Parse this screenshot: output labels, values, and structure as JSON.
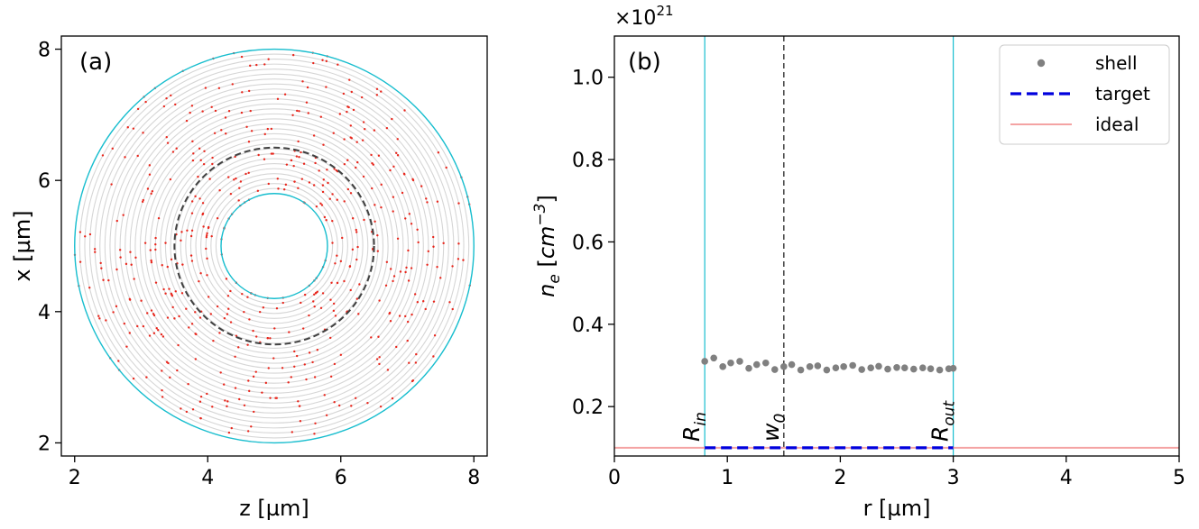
{
  "figure": {
    "panels": [
      "(a)",
      "(b)"
    ]
  },
  "chart_data": [
    {
      "type": "scatter",
      "panel_label": "(a)",
      "xlabel": "z [µm]",
      "ylabel": "x [µm]",
      "xlim": [
        1.8,
        8.2
      ],
      "ylim": [
        1.8,
        8.2
      ],
      "xticks": [
        2,
        4,
        6,
        8
      ],
      "yticks": [
        2,
        4,
        6,
        8
      ],
      "xtick_labels": [
        "2",
        "4",
        "6",
        "8"
      ],
      "ytick_labels": [
        "2",
        "4",
        "6",
        "8"
      ],
      "center": [
        5,
        5
      ],
      "shells": {
        "inner_radius": 0.8,
        "outer_radius": 3.0,
        "count": 30,
        "color": "#d6d6d6"
      },
      "boundary_radii": [
        0.8,
        3.0
      ],
      "boundary_color": "#17becf",
      "waist_radius": 1.5,
      "waist_color": "#404040",
      "particle_color": "#e8261c",
      "particle_count": 560
    },
    {
      "type": "line",
      "panel_label": "(b)",
      "xlabel": "r [µm]",
      "ylabel": "n_e [cm^-3]",
      "ylabel_parts": {
        "symbol": "n",
        "sub": "e",
        "unit": "cm",
        "exp": "−3"
      },
      "offset_text": {
        "base": "×10",
        "exp": "21"
      },
      "xlim": [
        0,
        5
      ],
      "ylim": [
        0.08,
        1.1
      ],
      "xticks": [
        0,
        1,
        2,
        3,
        4,
        5
      ],
      "xtick_labels": [
        "0",
        "1",
        "2",
        "3",
        "4",
        "5"
      ],
      "yticks": [
        0.2,
        0.4,
        0.6,
        0.8,
        1.0
      ],
      "ytick_labels": [
        "0.2",
        "0.4",
        "0.6",
        "0.8",
        "1.0"
      ],
      "vlines": [
        {
          "name": "R_in",
          "x": 0.8,
          "color": "#17becf",
          "style": "solid",
          "label": {
            "main": "R",
            "sub": "in"
          }
        },
        {
          "name": "w_0",
          "x": 1.5,
          "color": "#404040",
          "style": "dashed",
          "label": {
            "main": "w",
            "sub": "0"
          }
        },
        {
          "name": "R_out",
          "x": 3.0,
          "color": "#17becf",
          "style": "solid",
          "label": {
            "main": "R",
            "sub": "out"
          }
        }
      ],
      "series": [
        {
          "name": "shell",
          "kind": "scatter",
          "color": "#808080",
          "x": [
            0.8,
            0.88,
            0.96,
            1.03,
            1.11,
            1.19,
            1.26,
            1.34,
            1.42,
            1.5,
            1.57,
            1.65,
            1.73,
            1.8,
            1.88,
            1.96,
            2.03,
            2.11,
            2.19,
            2.27,
            2.34,
            2.42,
            2.5,
            2.57,
            2.65,
            2.73,
            2.8,
            2.88,
            2.96,
            3.0
          ],
          "values": [
            0.31,
            0.318,
            0.297,
            0.306,
            0.31,
            0.293,
            0.302,
            0.306,
            0.29,
            0.297,
            0.302,
            0.289,
            0.297,
            0.299,
            0.289,
            0.294,
            0.297,
            0.3,
            0.29,
            0.294,
            0.298,
            0.291,
            0.295,
            0.294,
            0.291,
            0.294,
            0.292,
            0.289,
            0.292,
            0.293
          ]
        },
        {
          "name": "target",
          "kind": "line",
          "style": "dashed",
          "color": "#0000dd",
          "x": [
            0.8,
            3.0
          ],
          "values": [
            0.1,
            0.1
          ]
        },
        {
          "name": "ideal",
          "kind": "line",
          "style": "solid",
          "color": "#f4a3a3",
          "x": [
            0,
            5
          ],
          "values": [
            0.1,
            0.1
          ]
        }
      ],
      "legend": {
        "position": "upper-right",
        "entries": [
          "shell",
          "target",
          "ideal"
        ]
      }
    }
  ]
}
